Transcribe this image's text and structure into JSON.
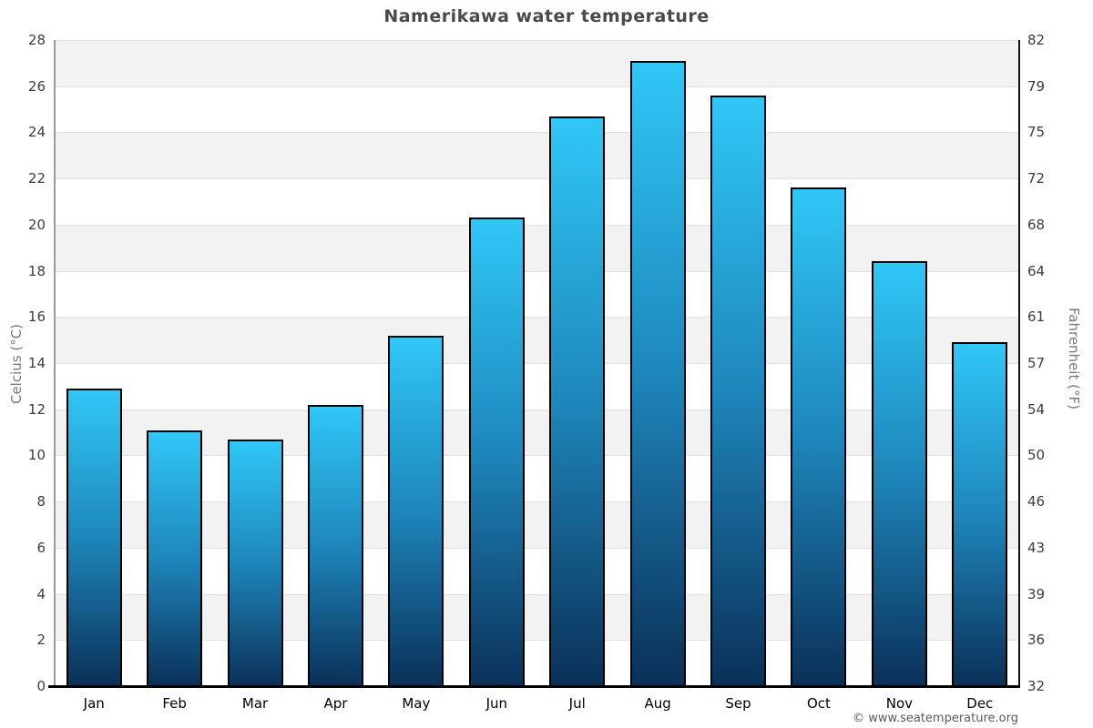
{
  "title": "Namerikawa water temperature",
  "footer": {
    "text": "© www.seatemperature.org"
  },
  "chart_data": {
    "type": "bar",
    "title": "Namerikawa water temperature",
    "categories": [
      "Jan",
      "Feb",
      "Mar",
      "Apr",
      "May",
      "Jun",
      "Jul",
      "Aug",
      "Sep",
      "Oct",
      "Nov",
      "Dec"
    ],
    "values": [
      12.9,
      11.1,
      10.7,
      12.2,
      15.2,
      20.3,
      24.7,
      27.1,
      25.6,
      21.6,
      18.4,
      14.9
    ],
    "unit": "°C",
    "ylabel_left": "Celcius (°C)",
    "ylabel_right": "Fahrenheit (°F)",
    "ylim": [
      0,
      28
    ],
    "ytick_step": 2,
    "yticks_left": [
      "28",
      "26",
      "24",
      "22",
      "20",
      "18",
      "16",
      "14",
      "12",
      "10",
      "8",
      "6",
      "4",
      "2",
      "0"
    ],
    "yticks_right": [
      "82",
      "79",
      "75",
      "72",
      "68",
      "64",
      "61",
      "57",
      "54",
      "50",
      "46",
      "43",
      "39",
      "36",
      "32"
    ],
    "legend": "none",
    "grid": "alternating horizontal bands every 2°C",
    "colors": {
      "bar_gradient_top": "#30c7f7",
      "bar_gradient_mid": "#1e86bb",
      "bar_gradient_bottom": "#0a3058",
      "bar_border": "#000000",
      "band_gray": "#f2f2f2",
      "band_white": "#ffffff",
      "gridline": "#e0e0e0",
      "axis_left": "#9a9a9a",
      "axis_right": "#111111",
      "axis_bottom": "#000000",
      "title_text": "#4a4a4a",
      "tick_text": "#3d3d3d",
      "month_text": "#000000",
      "axis_label_text": "#7a7a7a",
      "footer_text": "#5a5a5a"
    }
  }
}
